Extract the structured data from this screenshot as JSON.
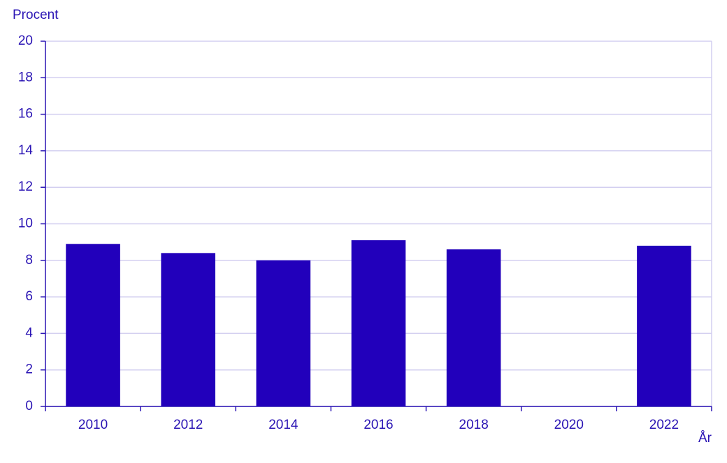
{
  "chart_data": {
    "type": "bar",
    "y_label": "Procent",
    "x_label": "År",
    "categories": [
      "2010",
      "2012",
      "2014",
      "2016",
      "2018",
      "2020",
      "2022"
    ],
    "values": [
      8.9,
      8.4,
      8.0,
      9.1,
      8.6,
      null,
      8.8
    ],
    "color": "#2200bb",
    "ylim": [
      0,
      20
    ],
    "yticks": [
      0,
      2,
      4,
      6,
      8,
      10,
      12,
      14,
      16,
      18,
      20
    ],
    "grid": true
  }
}
